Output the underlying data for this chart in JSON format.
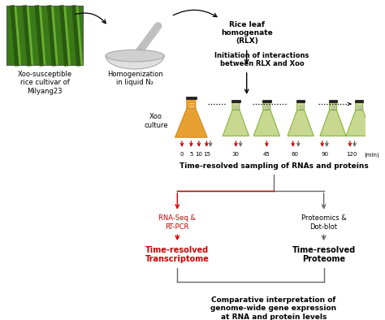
{
  "background_color": "#ffffff",
  "fig_width": 4.74,
  "fig_height": 3.94,
  "dpi": 100,
  "elements": {
    "xoo_susceptible_label": "Xoo-susceptible\nrice cultivar of\nMilyang23",
    "homogenization_label": "Homogenization\nin liquid N₂",
    "rlx_label": "Rice leaf\nhomogenate\n(RLX)",
    "initiation_label": "Initiation of interactions\nbetween RLX and Xoo",
    "xoo_culture_label": "Xoo\nculture",
    "time_label": "Time-resolved sampling of RNAs and proteins",
    "min_label": "(min)",
    "rnaseq_label": "RNA-Seq &\nRT-PCR",
    "proteomics_label": "Proteomics &\nDot-blot",
    "transcriptome_label": "Time-resolved\nTranscriptome",
    "proteome_label": "Time-resolved\nProteome",
    "comparative_label": "Comparative interpretation of\ngenome-wide gene expression\nat RNA and protein levels",
    "red_color": "#cc0000",
    "black_color": "#000000",
    "gray_color": "#666666",
    "flask_orange_color": "#e8a030",
    "flask_green_color": "#c8d890",
    "flask_outline_green": "#7ab030",
    "flask_outline_dark": "#222222"
  }
}
